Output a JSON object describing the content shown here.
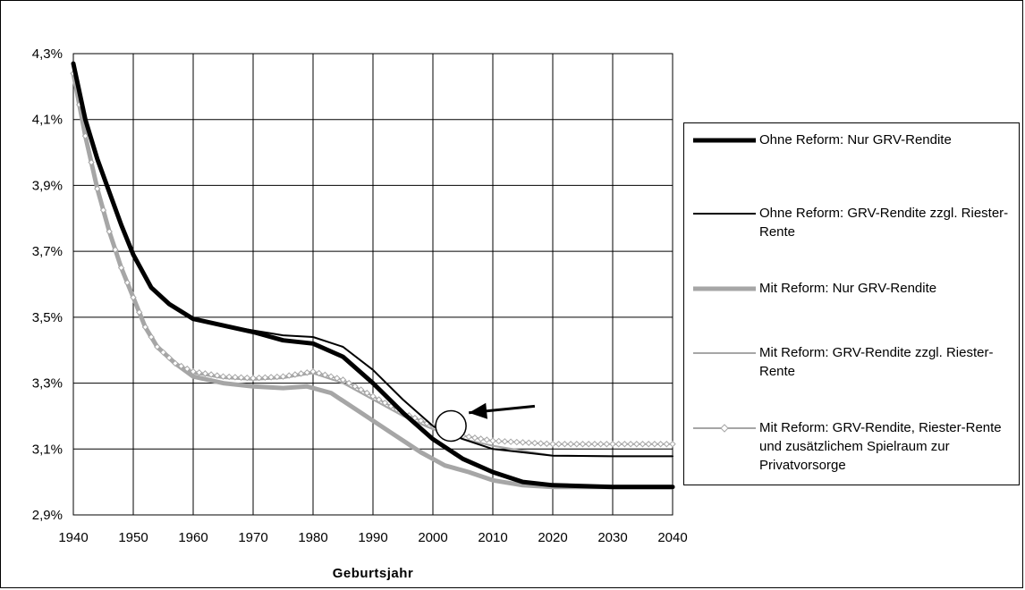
{
  "chart_data": {
    "type": "line",
    "title": "",
    "xlabel": "Geburtsjahr",
    "ylabel": "",
    "xlim": [
      1940,
      2040
    ],
    "ylim": [
      2.9,
      4.3
    ],
    "x_ticks": [
      "1940",
      "1950",
      "1960",
      "1970",
      "1980",
      "1990",
      "2000",
      "2010",
      "2020",
      "2030",
      "2040"
    ],
    "y_ticks": [
      "2,9%",
      "3,1%",
      "3,3%",
      "3,5%",
      "3,7%",
      "3,9%",
      "4,1%",
      "4,3%"
    ],
    "grid": true,
    "legend_position": "right",
    "series": [
      {
        "name": "Ohne Reform: Nur GRV-Rendite",
        "color": "#000000",
        "style": "thick",
        "x": [
          1940,
          1942,
          1944,
          1946,
          1948,
          1950,
          1953,
          1956,
          1960,
          1965,
          1970,
          1975,
          1980,
          1985,
          1990,
          1995,
          2000,
          2005,
          2010,
          2015,
          2020,
          2030,
          2040
        ],
        "y": [
          4.27,
          4.1,
          3.98,
          3.88,
          3.78,
          3.69,
          3.59,
          3.54,
          3.495,
          3.475,
          3.455,
          3.43,
          3.42,
          3.38,
          3.3,
          3.21,
          3.13,
          3.07,
          3.03,
          3.0,
          2.99,
          2.985,
          2.985
        ]
      },
      {
        "name": "Ohne Reform: GRV-Rendite zzgl. Riester-Rente",
        "color": "#000000",
        "style": "thin",
        "x": [
          1940,
          1942,
          1944,
          1946,
          1948,
          1950,
          1953,
          1956,
          1960,
          1965,
          1970,
          1975,
          1980,
          1985,
          1990,
          1995,
          2000,
          2001,
          2005,
          2010,
          2020,
          2030,
          2040
        ],
        "y": [
          4.27,
          4.1,
          3.98,
          3.88,
          3.78,
          3.69,
          3.59,
          3.54,
          3.495,
          3.475,
          3.46,
          3.445,
          3.44,
          3.41,
          3.34,
          3.25,
          3.17,
          3.16,
          3.13,
          3.1,
          3.08,
          3.078,
          3.078
        ]
      },
      {
        "name": "Mit Reform: Nur GRV-Rendite",
        "color": "#a6a6a6",
        "style": "thick",
        "x": [
          1940,
          1942,
          1944,
          1946,
          1948,
          1950,
          1952,
          1954,
          1957,
          1960,
          1965,
          1970,
          1975,
          1979,
          1983,
          1988,
          1993,
          1998,
          2002,
          2006,
          2010,
          2015,
          2020,
          2030,
          2040
        ],
        "y": [
          4.24,
          4.05,
          3.89,
          3.76,
          3.65,
          3.56,
          3.47,
          3.41,
          3.36,
          3.32,
          3.3,
          3.29,
          3.285,
          3.29,
          3.27,
          3.21,
          3.15,
          3.09,
          3.05,
          3.03,
          3.005,
          2.99,
          2.985,
          2.985,
          2.985
        ]
      },
      {
        "name": "Mit Reform: GRV-Rendite zzgl. Riester-Rente",
        "color": "#a6a6a6",
        "style": "thin",
        "x": [
          1940,
          1942,
          1944,
          1946,
          1948,
          1950,
          1952,
          1954,
          1957,
          1960,
          1965,
          1970,
          1975,
          1980,
          1985,
          1990,
          1995,
          2000,
          2005,
          2010,
          2020,
          2030,
          2040
        ],
        "y": [
          4.24,
          4.05,
          3.89,
          3.76,
          3.65,
          3.56,
          3.47,
          3.41,
          3.36,
          3.33,
          3.315,
          3.31,
          3.315,
          3.33,
          3.3,
          3.25,
          3.2,
          3.16,
          3.13,
          3.11,
          3.08,
          3.078,
          3.078
        ]
      },
      {
        "name": "Mit Reform: GRV-Rendite, Riester-Rente und zusätzlichem Spielraum zur Privatvorsorge",
        "color": "#a6a6a6",
        "style": "thin-diamond",
        "x": [
          1940,
          1942,
          1944,
          1946,
          1948,
          1950,
          1952,
          1954,
          1957,
          1960,
          1965,
          1970,
          1975,
          1980,
          1985,
          1990,
          1995,
          2000,
          2005,
          2010,
          2020,
          2030,
          2040
        ],
        "y": [
          4.24,
          4.05,
          3.89,
          3.76,
          3.65,
          3.56,
          3.47,
          3.41,
          3.36,
          3.335,
          3.32,
          3.315,
          3.32,
          3.335,
          3.31,
          3.26,
          3.21,
          3.17,
          3.14,
          3.125,
          3.115,
          3.115,
          3.115
        ]
      }
    ],
    "annotations": [
      {
        "type": "circle",
        "x": 2003,
        "y": 3.17
      },
      {
        "type": "arrow",
        "from": [
          2017,
          3.23
        ],
        "to": [
          2006,
          3.21
        ]
      }
    ]
  }
}
